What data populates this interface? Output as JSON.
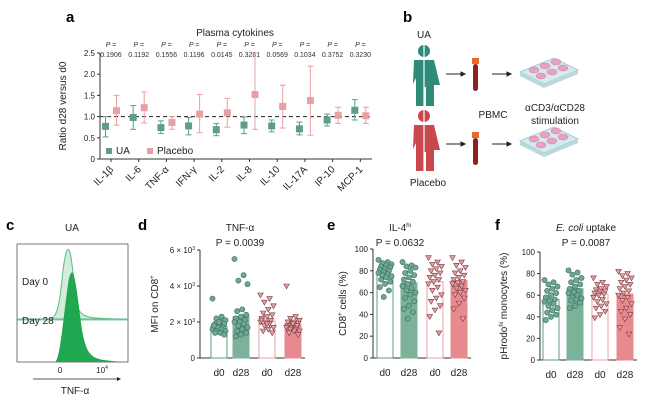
{
  "panel_labels": {
    "a": "a",
    "b": "b",
    "c": "c",
    "d": "d",
    "e": "e",
    "f": "f"
  },
  "colors": {
    "ua": "#5e9e87",
    "ua_bar": "#7cb29a",
    "placebo": "#e9a0a4",
    "placebo_bar": "#e8898d",
    "histogram_day28": "#1fa84f",
    "histogram_day0": "#cfe9d7"
  },
  "panel_b": {
    "ua_label": "UA",
    "placebo_label": "Placebo",
    "pbmc_label": "PBMC",
    "stimulation_line1": "αCD3/αCD28",
    "stimulation_line2": "stimulation",
    "icons": [
      "person-icon",
      "blood-tube-icon",
      "well-plate-icon",
      "arrow-right-icon"
    ]
  },
  "panel_c": {
    "title": "UA",
    "day0_label": "Day 0",
    "day28_label": "Day 28",
    "tick_0": "0",
    "tick_1_base": "10",
    "tick_1_exp": "4",
    "xlabel": "TNF-α"
  },
  "chart_data": [
    {
      "type": "scatter",
      "panel": "a",
      "title": "Plasma cytokines",
      "ylabel": "Ratio d28 versus d0",
      "ylim": [
        0,
        2.5
      ],
      "yticks": [
        "0",
        "0.5",
        "1.0",
        "1.5",
        "2.0",
        "2.5"
      ],
      "reference_line": 1.0,
      "categories": [
        "IL-1β",
        "IL-6",
        "TNF-α",
        "IFN-γ",
        "IL-2",
        "IL-8",
        "IL-10",
        "IL-17A",
        "IP-10",
        "MCP-1"
      ],
      "p_prefix": "P =",
      "p_values": [
        "0.1906",
        "0.1192",
        "0.1556",
        "0.1196",
        "0.0145",
        "0.3281",
        "0.0569",
        "0.1034",
        "0.3752",
        "0.3230"
      ],
      "legend": "bottom-left",
      "series": [
        {
          "name": "UA",
          "values": [
            0.77,
            0.98,
            0.74,
            0.78,
            0.69,
            0.8,
            0.78,
            0.71,
            0.92,
            1.15
          ],
          "low": [
            0.52,
            0.7,
            0.6,
            0.57,
            0.55,
            0.6,
            0.64,
            0.57,
            0.78,
            0.92
          ],
          "high": [
            1.0,
            1.26,
            0.9,
            0.98,
            0.84,
            0.99,
            0.92,
            0.87,
            1.06,
            1.4
          ]
        },
        {
          "name": "Placebo",
          "values": [
            1.14,
            1.21,
            0.86,
            1.06,
            1.09,
            1.52,
            1.24,
            1.38,
            1.03,
            1.02
          ],
          "low": [
            0.8,
            0.85,
            0.7,
            0.62,
            0.75,
            0.7,
            0.73,
            0.56,
            0.84,
            0.84
          ],
          "high": [
            1.5,
            1.58,
            1.0,
            1.52,
            1.43,
            2.5,
            1.74,
            2.19,
            1.22,
            1.22
          ]
        }
      ]
    },
    {
      "type": "bar",
      "panel": "d",
      "title": "TNF-α",
      "p_text": "P = 0.0039",
      "ylabel": "MFI on CD8",
      "ylabel_sup": "+",
      "ylim": [
        0,
        6000
      ],
      "yticks": [
        {
          "v": 0,
          "base": "0",
          "exp": ""
        },
        {
          "v": 2000,
          "base": "2 × 10",
          "exp": "3"
        },
        {
          "v": 4000,
          "base": "4 × 10",
          "exp": "3"
        },
        {
          "v": 6000,
          "base": "6 × 10",
          "exp": "3"
        }
      ],
      "categories": [
        "d0",
        "d28",
        "d0",
        "d28"
      ],
      "values": [
        1750,
        2300,
        2050,
        1850
      ],
      "points": [
        [
          3300,
          2300,
          2200,
          2100,
          2000,
          1900,
          1900,
          1800,
          1800,
          1700,
          1700,
          1600,
          1600,
          1500,
          1500,
          1400,
          1400,
          1300,
          2000,
          1800
        ],
        [
          5500,
          4600,
          4300,
          4100,
          2700,
          2600,
          2400,
          2300,
          2200,
          2100,
          2000,
          2000,
          1900,
          1800,
          1700,
          1600,
          1500,
          1400,
          1300,
          1200
        ],
        [
          3500,
          3300,
          3100,
          2900,
          2700,
          2500,
          2400,
          2300,
          2200,
          2100,
          2000,
          2000,
          1900,
          1800,
          1700,
          1600,
          1500,
          1400,
          1900,
          2100
        ],
        [
          4000,
          2300,
          2200,
          2100,
          2000,
          2000,
          1900,
          1900,
          1800,
          1800,
          1700,
          1700,
          1600,
          1600,
          1500,
          1500,
          1400,
          1300,
          1900,
          2000
        ]
      ]
    },
    {
      "type": "bar",
      "panel": "e",
      "title": "IL-4",
      "title_sup": "hi",
      "p_text": "P = 0.0632",
      "ylabel": "CD8",
      "ylabel_sup": "+",
      "ylabel_suffix": " cells (%)",
      "ylim": [
        0,
        100
      ],
      "yticks": [
        {
          "v": 0,
          "base": "0"
        },
        {
          "v": 20,
          "base": "20"
        },
        {
          "v": 40,
          "base": "40"
        },
        {
          "v": 60,
          "base": "60"
        },
        {
          "v": 80,
          "base": "80"
        },
        {
          "v": 100,
          "base": "100"
        }
      ],
      "categories": [
        "d0",
        "d28",
        "d0",
        "d28"
      ],
      "values": [
        77,
        69,
        70,
        71
      ],
      "points": [
        [
          90,
          88,
          87,
          86,
          85,
          84,
          83,
          82,
          81,
          80,
          79,
          78,
          77,
          76,
          75,
          74,
          72,
          70,
          68,
          65,
          62,
          56
        ],
        [
          88,
          85,
          84,
          83,
          80,
          78,
          76,
          74,
          72,
          70,
          68,
          66,
          64,
          62,
          60,
          58,
          55,
          52,
          48,
          45,
          42,
          36
        ],
        [
          92,
          88,
          86,
          84,
          82,
          80,
          78,
          76,
          74,
          72,
          70,
          68,
          65,
          62,
          58,
          55,
          52,
          48,
          44,
          38,
          23
        ],
        [
          92,
          88,
          85,
          83,
          80,
          78,
          76,
          74,
          72,
          70,
          69,
          68,
          66,
          64,
          62,
          60,
          58,
          55,
          50,
          45,
          36
        ]
      ]
    },
    {
      "type": "bar",
      "panel": "f",
      "title_italic": "E. coli",
      "title": " uptake",
      "p_text": "P = 0.0087",
      "ylabel": "pHrodo",
      "ylabel_sup": "hi",
      "ylabel_suffix": " monocytes (%)",
      "ylim": [
        0,
        100
      ],
      "yticks": [
        {
          "v": 0,
          "base": "0"
        },
        {
          "v": 20,
          "base": "20"
        },
        {
          "v": 40,
          "base": "40"
        },
        {
          "v": 60,
          "base": "60"
        },
        {
          "v": 80,
          "base": "80"
        },
        {
          "v": 100,
          "base": "100"
        }
      ],
      "categories": [
        "d0",
        "d28",
        "d0",
        "d28"
      ],
      "values": [
        56,
        66,
        61,
        61
      ],
      "points": [
        [
          74,
          72,
          70,
          68,
          66,
          64,
          62,
          60,
          58,
          56,
          55,
          54,
          52,
          50,
          48,
          46,
          44,
          42,
          40,
          37
        ],
        [
          83,
          81,
          79,
          76,
          74,
          72,
          70,
          68,
          66,
          64,
          63,
          62,
          60,
          58,
          57,
          56,
          55,
          53,
          50,
          48
        ],
        [
          76,
          72,
          70,
          68,
          66,
          65,
          64,
          63,
          62,
          61,
          60,
          58,
          56,
          54,
          52,
          50,
          48,
          45,
          42,
          39
        ],
        [
          82,
          80,
          78,
          76,
          74,
          72,
          70,
          68,
          66,
          64,
          62,
          60,
          58,
          55,
          52,
          48,
          45,
          42,
          38,
          30,
          24
        ]
      ]
    }
  ]
}
